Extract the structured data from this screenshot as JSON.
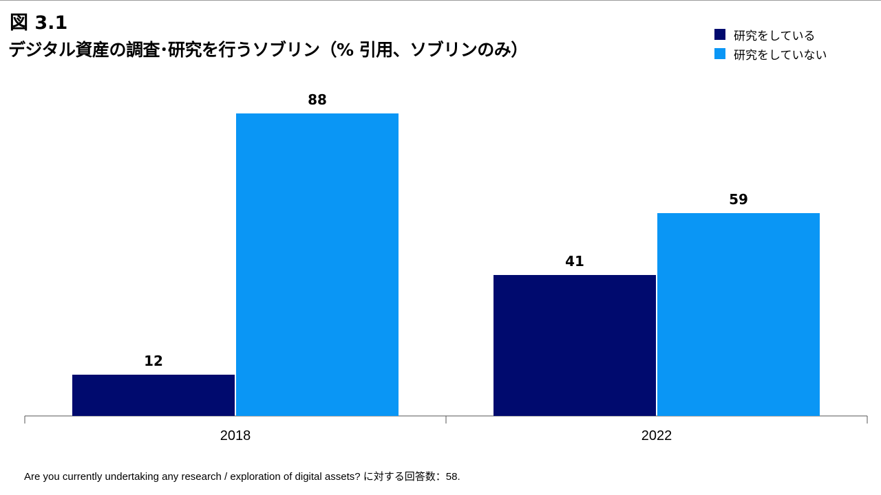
{
  "figure_label": "図 3.1",
  "title": "デジタル資産の調査･研究を行うソブリン（% 引用、ソブリンのみ）",
  "footnote": "Are you currently undertaking any research / exploration of digital assets? に対する回答数：58.",
  "colors": {
    "series_1": "#000a6e",
    "series_2": "#0a96f5",
    "axis": "#555555"
  },
  "chart_data": {
    "type": "bar",
    "categories": [
      "2018",
      "2022"
    ],
    "series": [
      {
        "name": "研究をしている",
        "values": [
          12,
          41
        ]
      },
      {
        "name": "研究をしていない",
        "values": [
          88,
          59
        ]
      }
    ],
    "data_labels": [
      [
        "12",
        "41"
      ],
      [
        "88",
        "59"
      ]
    ],
    "ylim": [
      0,
      100
    ],
    "grid": false,
    "legend_position": "top-right"
  }
}
